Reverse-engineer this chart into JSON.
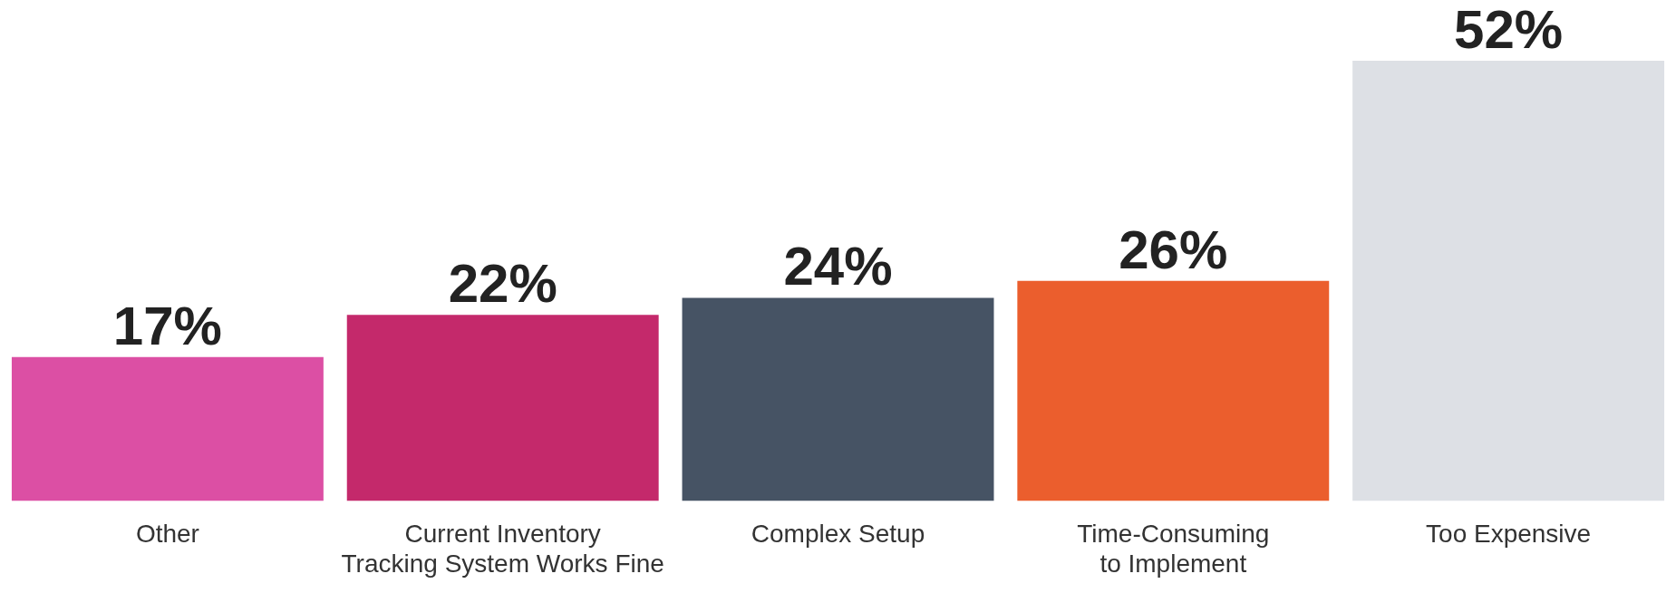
{
  "chart_data": {
    "type": "bar",
    "categories": [
      "Other",
      "Current Inventory\nTracking System Works Fine",
      "Complex Setup",
      "Time-Consuming\nto Implement",
      "Too Expensive"
    ],
    "values": [
      17,
      22,
      24,
      26,
      52
    ],
    "value_labels": [
      "17%",
      "22%",
      "24%",
      "26%",
      "52%"
    ],
    "colors": [
      "#dc4fa4",
      "#c4296b",
      "#465364",
      "#eb5e2d",
      "#dde0e5"
    ]
  }
}
